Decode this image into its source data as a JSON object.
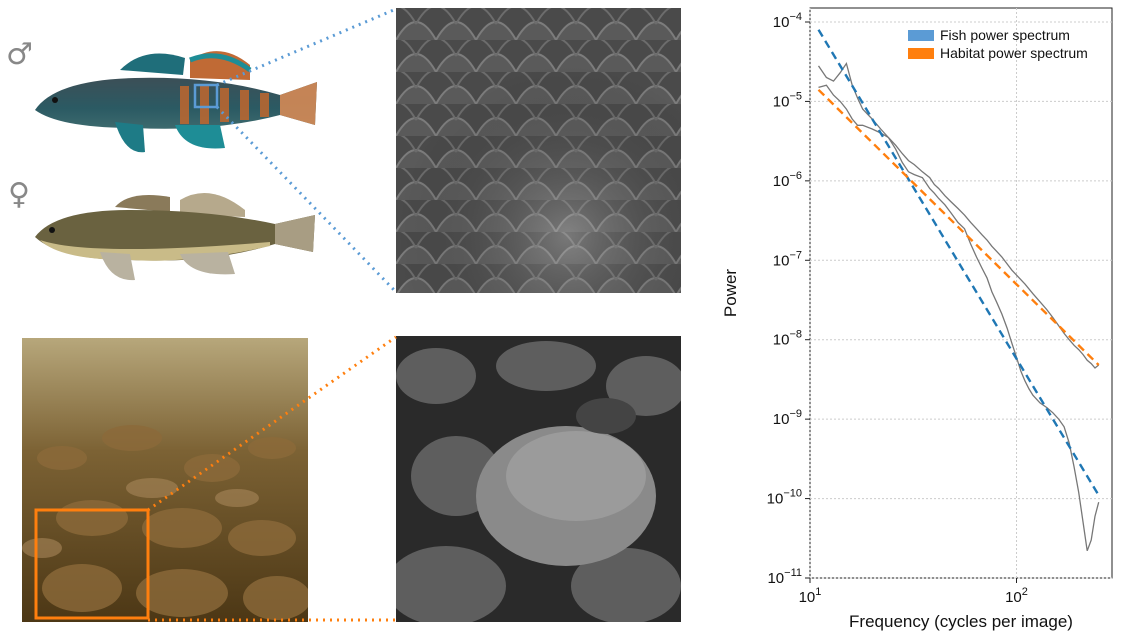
{
  "symbols": {
    "male": "♂",
    "female": "♀"
  },
  "colors": {
    "fish": "#1f77b4",
    "habitat": "#ff7f0e",
    "fish_legend": "#5b9bd5",
    "habitat_legend": "#ff7f0e",
    "empirical": "#777777"
  },
  "chart_data": {
    "type": "line",
    "xscale": "log",
    "yscale": "log",
    "xlim": [
      10,
      290
    ],
    "ylim": [
      1e-11,
      0.00015
    ],
    "grid": true,
    "xlabel": "Frequency (cycles per image)",
    "ylabel": "Power",
    "legend_position": "top-right",
    "xticks": [
      {
        "value": 10,
        "base": "10",
        "exp": "1"
      },
      {
        "value": 100,
        "base": "10",
        "exp": "2"
      }
    ],
    "yticks": [
      {
        "value": 0.0001,
        "base": "10",
        "exp": "−4"
      },
      {
        "value": 1e-05,
        "base": "10",
        "exp": "−5"
      },
      {
        "value": 1e-06,
        "base": "10",
        "exp": "−6"
      },
      {
        "value": 1e-07,
        "base": "10",
        "exp": "−7"
      },
      {
        "value": 1e-08,
        "base": "10",
        "exp": "−8"
      },
      {
        "value": 1e-09,
        "base": "10",
        "exp": "−9"
      },
      {
        "value": 1e-10,
        "base": "10",
        "exp": "−10"
      },
      {
        "value": 1e-11,
        "base": "10",
        "exp": "−11"
      }
    ],
    "series": [
      {
        "name": "Fish power spectrum",
        "kind": "fit",
        "color": "#1f77b4",
        "x": [
          11,
          250
        ],
        "y": [
          8e-05,
          1.1e-10
        ]
      },
      {
        "name": "Habitat power spectrum",
        "kind": "fit",
        "color": "#ff7f0e",
        "x": [
          11,
          250
        ],
        "y": [
          1.4e-05,
          4.8e-09
        ]
      },
      {
        "kind": "empirical",
        "color": "#777777",
        "x": [
          11,
          12,
          13,
          14,
          15,
          16,
          17,
          18,
          20,
          22,
          24,
          26,
          28,
          30,
          32,
          35,
          38,
          40,
          42,
          45,
          48,
          52,
          56,
          60,
          64,
          68,
          72,
          76,
          80,
          85,
          90,
          95,
          100,
          105,
          110,
          115,
          120,
          130,
          140,
          150,
          160,
          170,
          180,
          190,
          200,
          210,
          220,
          230,
          240,
          250
        ],
        "y": [
          2.8e-05,
          2e-05,
          1.8e-05,
          2.3e-05,
          3e-05,
          1.6e-05,
          1.1e-05,
          8e-06,
          6e-06,
          4.5e-06,
          3.5e-06,
          2.5e-06,
          1.7e-06,
          1.3e-06,
          1.2e-06,
          1.1e-06,
          8e-07,
          7e-07,
          6e-07,
          5e-07,
          4e-07,
          3e-07,
          2.5e-07,
          1.6e-07,
          1.1e-07,
          8e-08,
          6e-08,
          4e-08,
          3e-08,
          2.1e-08,
          1.4e-08,
          9e-09,
          6e-09,
          4e-09,
          3e-09,
          2.4e-09,
          2e-09,
          1.6e-09,
          1.4e-09,
          1.2e-09,
          1e-09,
          8e-10,
          5e-10,
          2.5e-10,
          1.2e-10,
          5e-11,
          2.2e-11,
          3e-11,
          6e-11,
          9e-11
        ]
      },
      {
        "kind": "empirical",
        "color": "#777777",
        "x": [
          11,
          12,
          13,
          14,
          15,
          16,
          17,
          18,
          20,
          22,
          24,
          26,
          28,
          30,
          32,
          35,
          38,
          40,
          42,
          45,
          48,
          52,
          56,
          60,
          64,
          68,
          72,
          76,
          80,
          85,
          90,
          95,
          100,
          110,
          120,
          130,
          140,
          150,
          160,
          170,
          180,
          190,
          200,
          210,
          220,
          230,
          240,
          250
        ],
        "y": [
          1.5e-05,
          1.6e-05,
          1.2e-05,
          1e-05,
          8e-06,
          6e-06,
          5e-06,
          5e-06,
          4.5e-06,
          4e-06,
          3.5e-06,
          2.8e-06,
          2.2e-06,
          1.8e-06,
          1.6e-06,
          1.3e-06,
          1.1e-06,
          9e-07,
          8e-07,
          6.5e-07,
          5.5e-07,
          4.5e-07,
          3.7e-07,
          3e-07,
          2.5e-07,
          2.1e-07,
          1.8e-07,
          1.5e-07,
          1.3e-07,
          1.1e-07,
          9e-08,
          7.5e-08,
          6.5e-08,
          5e-08,
          3.8e-08,
          3e-08,
          2.4e-08,
          1.9e-08,
          1.5e-08,
          1.2e-08,
          1e-08,
          8.5e-09,
          7.5e-09,
          6.5e-09,
          5.5e-09,
          5e-09,
          4.4e-09,
          4.8e-09
        ]
      }
    ]
  }
}
